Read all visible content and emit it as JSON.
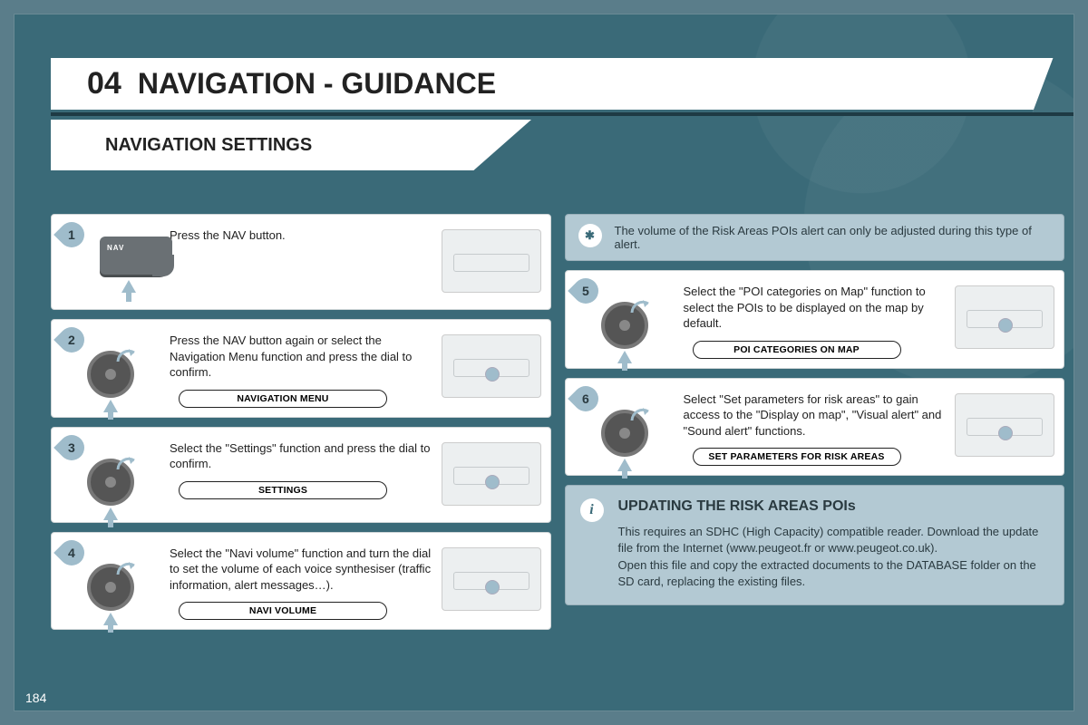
{
  "header": {
    "section_number": "04",
    "title": "NAVIGATION - GUIDANCE",
    "subtitle": "NAVIGATION SETTINGS"
  },
  "colors": {
    "page_bg": "#3a6a78",
    "outer_bg": "#5a7d8a",
    "accent": "#9fbccb",
    "note_bg": "#b3c9d3"
  },
  "left_steps": [
    {
      "num": "1",
      "text": "Press the NAV button.",
      "icon": "nav-button",
      "button_label": null,
      "thumb": "panel"
    },
    {
      "num": "2",
      "text": "Press the NAV button again or select the Navigation Menu function and press the dial to confirm.",
      "icon": "dial",
      "button_label": "NAVIGATION MENU",
      "thumb": "panel-dial"
    },
    {
      "num": "3",
      "text": "Select the \"Settings\" function and press the dial to confirm.",
      "icon": "dial",
      "button_label": "SETTINGS",
      "thumb": "panel-dial"
    },
    {
      "num": "4",
      "text": "Select the \"Navi volume\" function and turn the dial to set the volume of each voice synthesiser (traffic information, alert messages…).",
      "icon": "dial",
      "button_label": "NAVI VOLUME",
      "thumb": "panel-dial"
    }
  ],
  "right_note": {
    "icon": "✱",
    "text": "The volume of the Risk Areas POIs alert can only be adjusted during this type of alert."
  },
  "right_steps": [
    {
      "num": "5",
      "text": "Select the \"POI categories on Map\" function to select the POIs to be displayed on the map by default.",
      "icon": "dial",
      "button_label": "POI CATEGORIES ON MAP",
      "thumb": "panel-dial"
    },
    {
      "num": "6",
      "text": "Select \"Set parameters for risk areas\" to gain access to the \"Display on map\", \"Visual alert\" and \"Sound alert\" functions.",
      "icon": "dial",
      "button_label": "SET PARAMETERS FOR RISK AREAS",
      "thumb": "panel-dial"
    }
  ],
  "info_box": {
    "icon": "i",
    "heading": "UPDATING THE RISK AREAS POIs",
    "body": "This requires an SDHC (High Capacity) compatible reader. Download the update file from the Internet (www.peugeot.fr or www.peugeot.co.uk).\nOpen this file and copy the extracted documents to the DATABASE folder on the SD card, replacing the existing files."
  },
  "page_number": "184",
  "nav_button_label": "NAV"
}
